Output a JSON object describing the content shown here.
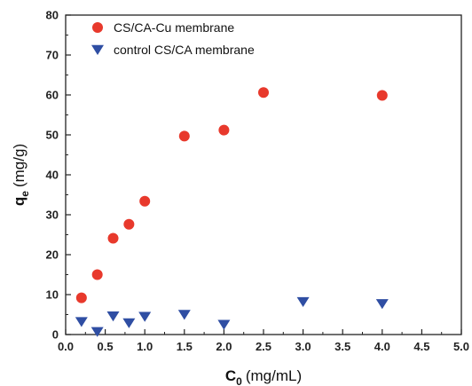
{
  "chart_data": {
    "type": "scatter",
    "x_symbol": "C",
    "x_subscript": "0",
    "x_unit": "(mg/mL)",
    "y_symbol": "q",
    "y_subscript": "e",
    "y_unit": "(mg/g)",
    "xlim": [
      0.0,
      5.0
    ],
    "ylim": [
      0,
      80
    ],
    "x_ticks": [
      "0.0",
      "0.5",
      "1.0",
      "1.5",
      "2.0",
      "2.5",
      "3.0",
      "3.5",
      "4.0",
      "4.5",
      "5.0"
    ],
    "y_ticks": [
      "0",
      "10",
      "20",
      "30",
      "40",
      "50",
      "60",
      "70",
      "80"
    ],
    "legend_position": "top-left",
    "grid": false,
    "series": [
      {
        "name": "CS/CA-Cu membrane",
        "marker": "circle",
        "color": "#e8392c",
        "points": [
          {
            "x": 0.2,
            "y": 9.2
          },
          {
            "x": 0.4,
            "y": 15.0
          },
          {
            "x": 0.6,
            "y": 24.1
          },
          {
            "x": 0.8,
            "y": 27.6
          },
          {
            "x": 1.0,
            "y": 33.4
          },
          {
            "x": 1.5,
            "y": 49.7
          },
          {
            "x": 2.0,
            "y": 51.2
          },
          {
            "x": 2.5,
            "y": 60.6
          },
          {
            "x": 4.0,
            "y": 59.9
          }
        ]
      },
      {
        "name": "control CS/CA membrane",
        "marker": "triangle-down",
        "color": "#2f4ea3",
        "points": [
          {
            "x": 0.2,
            "y": 3.2
          },
          {
            "x": 0.4,
            "y": 0.7
          },
          {
            "x": 0.6,
            "y": 4.6
          },
          {
            "x": 0.8,
            "y": 2.9
          },
          {
            "x": 1.0,
            "y": 4.5
          },
          {
            "x": 1.5,
            "y": 5.0
          },
          {
            "x": 2.0,
            "y": 2.5
          },
          {
            "x": 3.0,
            "y": 8.2
          },
          {
            "x": 4.0,
            "y": 7.7
          }
        ]
      }
    ]
  }
}
